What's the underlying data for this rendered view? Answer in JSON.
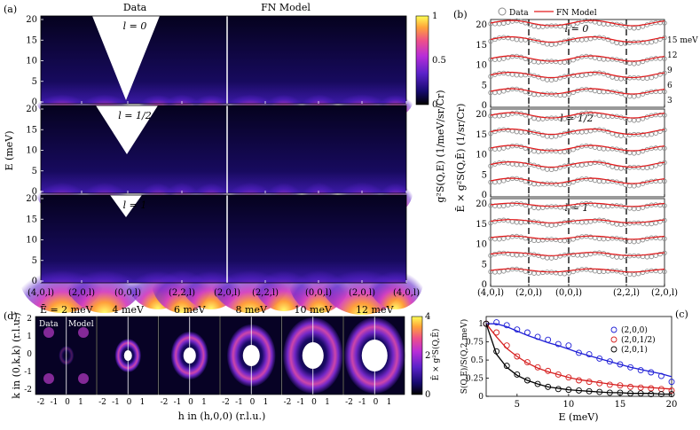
{
  "figure": {
    "panel_letters": [
      "(a)",
      "(b)",
      "(c)",
      "(d)"
    ],
    "colors": {
      "data_marker": "#888888",
      "model_line": "#e41a1c",
      "s200": "#1f1fd6",
      "s201_2": "#d62020",
      "s201": "#000000"
    }
  },
  "panel_a": {
    "headers": {
      "data": "Data",
      "model": "FN Model"
    },
    "subpanels": [
      {
        "label": "l = 0"
      },
      {
        "label": "l = 1/2"
      },
      {
        "label": "l = 1"
      }
    ],
    "ylabel": "E (meV)",
    "yticks": [
      "0",
      "5",
      "10",
      "15",
      "20"
    ],
    "xticks": [
      "(4,0,l)",
      "(2,0,l)",
      "(0,0,l)",
      "(2,2,l)",
      "(2,0,l)",
      "(2,2,l)",
      "(0,0,l)",
      "(2,0,l)",
      "(4,0,l)"
    ],
    "colorbar": {
      "label": "g²S(Q,E) (1/meV/sr/Cr)",
      "ticks": [
        "0",
        "0.5",
        "1"
      ]
    }
  },
  "panel_b": {
    "legend": {
      "data": "Data",
      "model": "FN Model"
    },
    "ylabel": "Ē × g²S(Q,Ē) (1/sr/Cr)",
    "yticks": [
      "0",
      "5",
      "10",
      "15",
      "20"
    ],
    "xticks": [
      "(4,0,l)",
      "(2,0,l)",
      "(0,0,l)",
      "(2,2,l)",
      "(2,0,l)"
    ],
    "energy_labels": [
      "15 meV",
      "12",
      "9",
      "6",
      "3"
    ],
    "subpanels": [
      {
        "label": "l = 0"
      },
      {
        "label": "l = 1/2"
      },
      {
        "label": "l = 1"
      }
    ]
  },
  "panel_d": {
    "energies": [
      "Ē = 2 meV",
      "4 meV",
      "6 meV",
      "8 meV",
      "10 meV",
      "12 meV"
    ],
    "data_label": "Data",
    "model_label": "Model",
    "ylabel": "k in (0,k,k) (r.l.u.)",
    "xlabel": "h in (h,0,0) (r.l.u.)",
    "yticks": [
      "2",
      "1",
      "0",
      "-1",
      "-2"
    ],
    "xticks": [
      "-2",
      "-1",
      "0",
      "1"
    ],
    "colorbar": {
      "label": "Ē × g²S(Q,Ē)",
      "ticks": [
        "0",
        "2",
        "4"
      ]
    }
  },
  "chart_data": [
    {
      "type": "line",
      "panel": "(c)",
      "xlabel": "E (meV)",
      "ylabel": "S(Q,E)/S(Q,2 meV)",
      "xlim": [
        2,
        20
      ],
      "ylim": [
        0,
        1.1
      ],
      "xticks": [
        "5",
        "10",
        "15",
        "20"
      ],
      "yticks": [
        "0",
        "0.25",
        "0.5",
        "0.75",
        "1"
      ],
      "legend_position": "top-right",
      "series": [
        {
          "name": "(2,0,0)",
          "x": [
            2,
            3,
            4,
            5,
            6,
            7,
            8,
            9,
            10,
            11,
            12,
            13,
            14,
            15,
            16,
            17,
            18,
            19,
            20
          ],
          "data": [
            1.0,
            1.02,
            0.98,
            0.92,
            0.88,
            0.82,
            0.78,
            0.72,
            0.7,
            0.6,
            0.58,
            0.52,
            0.48,
            0.44,
            0.4,
            0.36,
            0.33,
            0.28,
            0.2
          ],
          "model": [
            1.0,
            1.0,
            0.96,
            0.9,
            0.84,
            0.79,
            0.74,
            0.7,
            0.65,
            0.6,
            0.56,
            0.52,
            0.48,
            0.44,
            0.4,
            0.37,
            0.34,
            0.31,
            0.27
          ]
        },
        {
          "name": "(2,0,1/2)",
          "x": [
            2,
            3,
            4,
            5,
            6,
            7,
            8,
            9,
            10,
            11,
            12,
            13,
            14,
            15,
            16,
            17,
            18,
            19,
            20
          ],
          "data": [
            1.0,
            0.88,
            0.7,
            0.55,
            0.47,
            0.4,
            0.35,
            0.3,
            0.26,
            0.22,
            0.2,
            0.18,
            0.16,
            0.15,
            0.13,
            0.12,
            0.11,
            0.1,
            0.08
          ],
          "model": [
            1.0,
            0.82,
            0.66,
            0.55,
            0.46,
            0.39,
            0.34,
            0.3,
            0.26,
            0.23,
            0.21,
            0.19,
            0.17,
            0.15,
            0.14,
            0.13,
            0.12,
            0.11,
            0.1
          ]
        },
        {
          "name": "(2,0,1)",
          "x": [
            2,
            3,
            4,
            5,
            6,
            7,
            8,
            9,
            10,
            11,
            12,
            13,
            14,
            15,
            16,
            17,
            18,
            19,
            20
          ],
          "data": [
            1.0,
            0.62,
            0.42,
            0.3,
            0.22,
            0.17,
            0.13,
            0.1,
            0.09,
            0.08,
            0.07,
            0.06,
            0.05,
            0.05,
            0.04,
            0.04,
            0.03,
            0.03,
            0.03
          ],
          "model": [
            1.0,
            0.58,
            0.4,
            0.29,
            0.22,
            0.17,
            0.13,
            0.11,
            0.09,
            0.08,
            0.07,
            0.06,
            0.05,
            0.05,
            0.04,
            0.04,
            0.04,
            0.03,
            0.03
          ]
        }
      ]
    }
  ]
}
